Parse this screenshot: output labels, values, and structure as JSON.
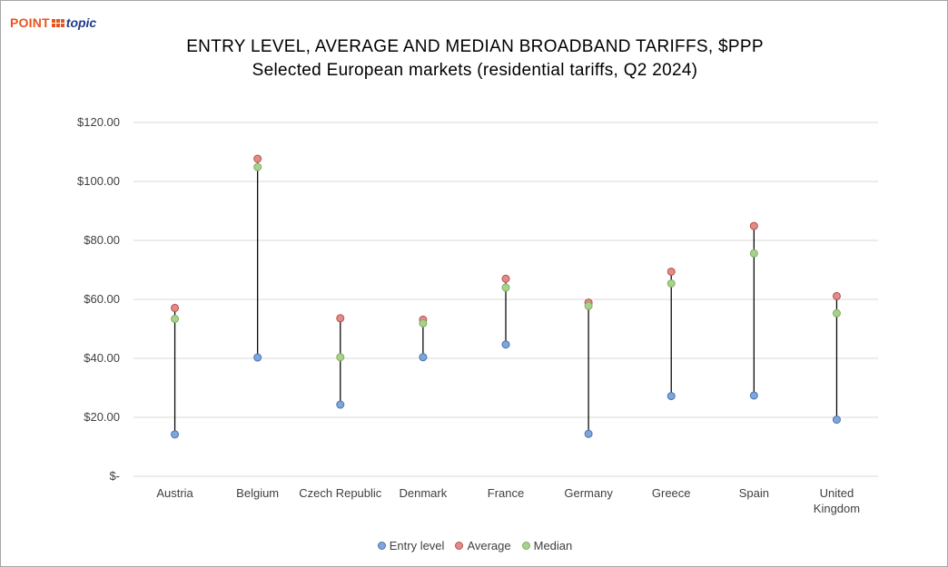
{
  "logo": {
    "part1": "POINT",
    "part2": "topic"
  },
  "colors": {
    "entry": "#7ea6d9",
    "entry_stroke": "#4a73b0",
    "average": "#e28b89",
    "average_stroke": "#b5504d",
    "median": "#a9d18e",
    "median_stroke": "#7fae5f",
    "stem": "#000000",
    "grid": "#d9d9d9",
    "tick_text": "#404040"
  },
  "chart_data": {
    "type": "scatter",
    "title": "ENTRY LEVEL, AVERAGE AND MEDIAN BROADBAND TARIFFS, $PPP",
    "subtitle": "Selected European markets (residential tariffs, Q2 2024)",
    "categories": [
      "Austria",
      "Belgium",
      "Czech Republic",
      "Denmark",
      "France",
      "Germany",
      "Greece",
      "Spain",
      "United Kingdom"
    ],
    "ylim": [
      0,
      120
    ],
    "yticks": [
      {
        "value": 0,
        "label": "$-"
      },
      {
        "value": 20,
        "label": "$20.00"
      },
      {
        "value": 40,
        "label": "$40.00"
      },
      {
        "value": 60,
        "label": "$60.00"
      },
      {
        "value": 80,
        "label": "$80.00"
      },
      {
        "value": 100,
        "label": "$100.00"
      },
      {
        "value": 120,
        "label": "$120.00"
      }
    ],
    "grid": true,
    "legend_position": "bottom",
    "series": [
      {
        "name": "Entry level",
        "key": "entry",
        "values": [
          14.2,
          40.3,
          24.3,
          40.4,
          44.7,
          14.4,
          27.2,
          27.4,
          19.2
        ]
      },
      {
        "name": "Average",
        "key": "average",
        "values": [
          57.1,
          107.7,
          53.6,
          53.1,
          67.0,
          58.9,
          69.4,
          84.9,
          61.1
        ]
      },
      {
        "name": "Median",
        "key": "median",
        "values": [
          53.4,
          104.9,
          40.4,
          51.9,
          64.0,
          57.8,
          65.4,
          75.6,
          55.3
        ]
      }
    ]
  }
}
